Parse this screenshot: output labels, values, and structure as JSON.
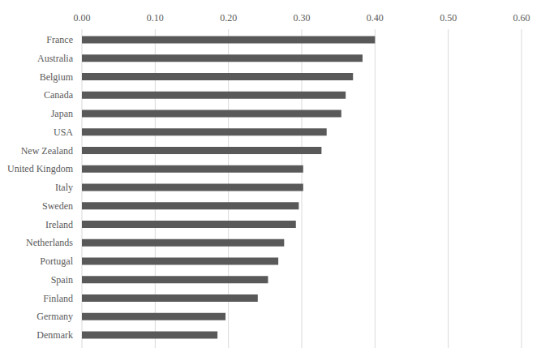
{
  "chart_data": {
    "type": "bar",
    "orientation": "horizontal",
    "categories": [
      "France",
      "Australia",
      "Belgium",
      "Canada",
      "Japan",
      "USA",
      "New Zealand",
      "United Kingdom",
      "Italy",
      "Sweden",
      "Ireland",
      "Netherlands",
      "Portugal",
      "Spain",
      "Finland",
      "Germany",
      "Denmark"
    ],
    "values": [
      0.4,
      0.383,
      0.37,
      0.36,
      0.354,
      0.334,
      0.327,
      0.302,
      0.302,
      0.296,
      0.292,
      0.276,
      0.268,
      0.254,
      0.24,
      0.196,
      0.185
    ],
    "color": "#595959",
    "xlim": [
      0,
      0.6
    ],
    "xticks": [
      {
        "value": 0,
        "label": "0.00"
      },
      {
        "value": 0.1,
        "label": "0.10"
      },
      {
        "value": 0.2,
        "label": "0.20"
      },
      {
        "value": 0.3,
        "label": "0.30"
      },
      {
        "value": 0.4,
        "label": "0.40"
      },
      {
        "value": 0.5,
        "label": "0.50"
      },
      {
        "value": 0.6,
        "label": "0.60"
      }
    ],
    "grid": true
  }
}
